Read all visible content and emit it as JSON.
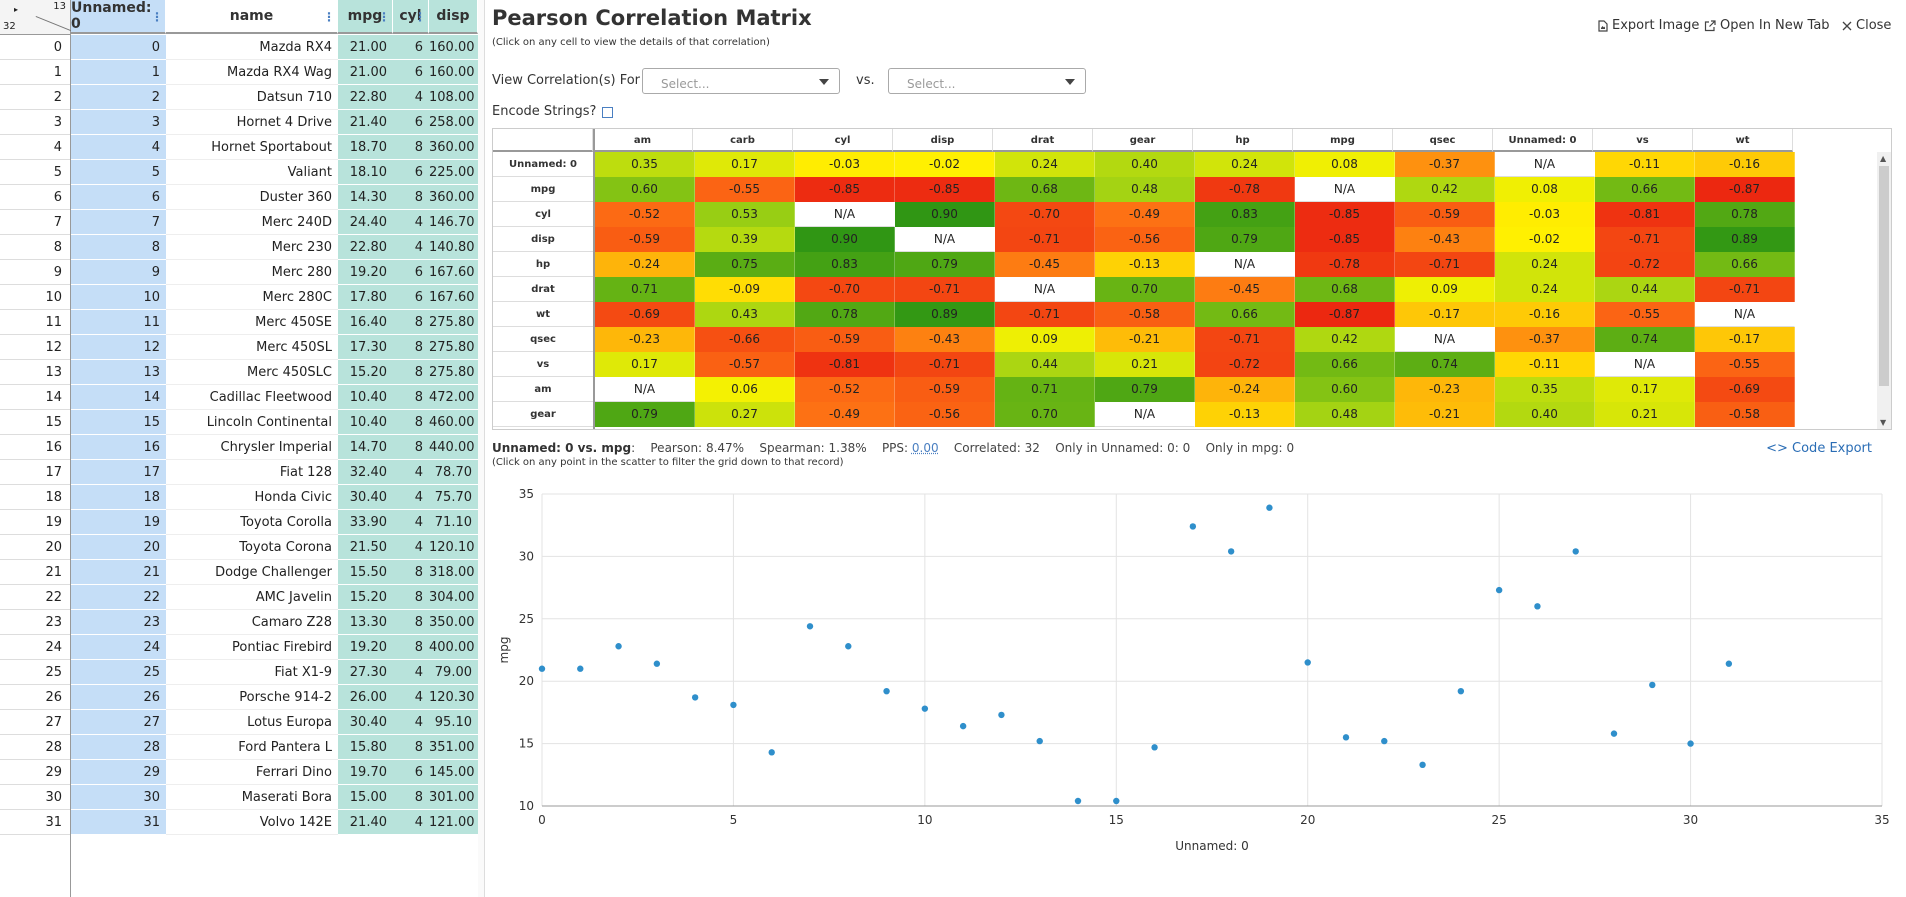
{
  "grid": {
    "corner": {
      "cols": "13",
      "rows": "32",
      "arrow": "▸"
    },
    "columns": [
      {
        "label": "Unnamed: 0"
      },
      {
        "label": "name"
      },
      {
        "label": "mpg"
      },
      {
        "label": "cyl"
      },
      {
        "label": "disp"
      }
    ],
    "rows": [
      [
        "0",
        "0",
        "Mazda RX4",
        "21.00",
        "6",
        "160.00"
      ],
      [
        "1",
        "1",
        "Mazda RX4 Wag",
        "21.00",
        "6",
        "160.00"
      ],
      [
        "2",
        "2",
        "Datsun 710",
        "22.80",
        "4",
        "108.00"
      ],
      [
        "3",
        "3",
        "Hornet 4 Drive",
        "21.40",
        "6",
        "258.00"
      ],
      [
        "4",
        "4",
        "Hornet Sportabout",
        "18.70",
        "8",
        "360.00"
      ],
      [
        "5",
        "5",
        "Valiant",
        "18.10",
        "6",
        "225.00"
      ],
      [
        "6",
        "6",
        "Duster 360",
        "14.30",
        "8",
        "360.00"
      ],
      [
        "7",
        "7",
        "Merc 240D",
        "24.40",
        "4",
        "146.70"
      ],
      [
        "8",
        "8",
        "Merc 230",
        "22.80",
        "4",
        "140.80"
      ],
      [
        "9",
        "9",
        "Merc 280",
        "19.20",
        "6",
        "167.60"
      ],
      [
        "10",
        "10",
        "Merc 280C",
        "17.80",
        "6",
        "167.60"
      ],
      [
        "11",
        "11",
        "Merc 450SE",
        "16.40",
        "8",
        "275.80"
      ],
      [
        "12",
        "12",
        "Merc 450SL",
        "17.30",
        "8",
        "275.80"
      ],
      [
        "13",
        "13",
        "Merc 450SLC",
        "15.20",
        "8",
        "275.80"
      ],
      [
        "14",
        "14",
        "Cadillac Fleetwood",
        "10.40",
        "8",
        "472.00"
      ],
      [
        "15",
        "15",
        "Lincoln Continental",
        "10.40",
        "8",
        "460.00"
      ],
      [
        "16",
        "16",
        "Chrysler Imperial",
        "14.70",
        "8",
        "440.00"
      ],
      [
        "17",
        "17",
        "Fiat 128",
        "32.40",
        "4",
        "78.70"
      ],
      [
        "18",
        "18",
        "Honda Civic",
        "30.40",
        "4",
        "75.70"
      ],
      [
        "19",
        "19",
        "Toyota Corolla",
        "33.90",
        "4",
        "71.10"
      ],
      [
        "20",
        "20",
        "Toyota Corona",
        "21.50",
        "4",
        "120.10"
      ],
      [
        "21",
        "21",
        "Dodge Challenger",
        "15.50",
        "8",
        "318.00"
      ],
      [
        "22",
        "22",
        "AMC Javelin",
        "15.20",
        "8",
        "304.00"
      ],
      [
        "23",
        "23",
        "Camaro Z28",
        "13.30",
        "8",
        "350.00"
      ],
      [
        "24",
        "24",
        "Pontiac Firebird",
        "19.20",
        "8",
        "400.00"
      ],
      [
        "25",
        "25",
        "Fiat X1-9",
        "27.30",
        "4",
        "79.00"
      ],
      [
        "26",
        "26",
        "Porsche 914-2",
        "26.00",
        "4",
        "120.30"
      ],
      [
        "27",
        "27",
        "Lotus Europa",
        "30.40",
        "4",
        "95.10"
      ],
      [
        "28",
        "28",
        "Ford Pantera L",
        "15.80",
        "8",
        "351.00"
      ],
      [
        "29",
        "29",
        "Ferrari Dino",
        "19.70",
        "6",
        "145.00"
      ],
      [
        "30",
        "30",
        "Maserati Bora",
        "15.00",
        "8",
        "301.00"
      ],
      [
        "31",
        "31",
        "Volvo 142E",
        "21.40",
        "4",
        "121.00"
      ]
    ]
  },
  "panel": {
    "title": "Pearson Correlation Matrix",
    "subtitle": "(Click on any cell to view the details of that correlation)",
    "export_image": "Export Image",
    "open_new_tab": "Open In New Tab",
    "close": "Close",
    "view_for_label": "View Correlation(s) For",
    "select1_placeholder": "Select...",
    "vs_label": "vs.",
    "select2_placeholder": "Select...",
    "encode_label": "Encode Strings?"
  },
  "matrix": {
    "columns": [
      "am",
      "carb",
      "cyl",
      "disp",
      "drat",
      "gear",
      "hp",
      "mpg",
      "qsec",
      "Unnamed: 0",
      "vs",
      "wt"
    ],
    "rows": [
      {
        "label": "Unnamed: 0",
        "values": [
          "0.35",
          "0.17",
          "-0.03",
          "-0.02",
          "0.24",
          "0.40",
          "0.24",
          "0.08",
          "-0.37",
          "N/A",
          "-0.11",
          "-0.16"
        ]
      },
      {
        "label": "mpg",
        "values": [
          "0.60",
          "-0.55",
          "-0.85",
          "-0.85",
          "0.68",
          "0.48",
          "-0.78",
          "N/A",
          "0.42",
          "0.08",
          "0.66",
          "-0.87"
        ]
      },
      {
        "label": "cyl",
        "values": [
          "-0.52",
          "0.53",
          "N/A",
          "0.90",
          "-0.70",
          "-0.49",
          "0.83",
          "-0.85",
          "-0.59",
          "-0.03",
          "-0.81",
          "0.78"
        ]
      },
      {
        "label": "disp",
        "values": [
          "-0.59",
          "0.39",
          "0.90",
          "N/A",
          "-0.71",
          "-0.56",
          "0.79",
          "-0.85",
          "-0.43",
          "-0.02",
          "-0.71",
          "0.89"
        ]
      },
      {
        "label": "hp",
        "values": [
          "-0.24",
          "0.75",
          "0.83",
          "0.79",
          "-0.45",
          "-0.13",
          "N/A",
          "-0.78",
          "-0.71",
          "0.24",
          "-0.72",
          "0.66"
        ]
      },
      {
        "label": "drat",
        "values": [
          "0.71",
          "-0.09",
          "-0.70",
          "-0.71",
          "N/A",
          "0.70",
          "-0.45",
          "0.68",
          "0.09",
          "0.24",
          "0.44",
          "-0.71"
        ]
      },
      {
        "label": "wt",
        "values": [
          "-0.69",
          "0.43",
          "0.78",
          "0.89",
          "-0.71",
          "-0.58",
          "0.66",
          "-0.87",
          "-0.17",
          "-0.16",
          "-0.55",
          "N/A"
        ]
      },
      {
        "label": "qsec",
        "values": [
          "-0.23",
          "-0.66",
          "-0.59",
          "-0.43",
          "0.09",
          "-0.21",
          "-0.71",
          "0.42",
          "N/A",
          "-0.37",
          "0.74",
          "-0.17"
        ]
      },
      {
        "label": "vs",
        "values": [
          "0.17",
          "-0.57",
          "-0.81",
          "-0.71",
          "0.44",
          "0.21",
          "-0.72",
          "0.66",
          "0.74",
          "-0.11",
          "N/A",
          "-0.55"
        ]
      },
      {
        "label": "am",
        "values": [
          "N/A",
          "0.06",
          "-0.52",
          "-0.59",
          "0.71",
          "0.79",
          "-0.24",
          "0.60",
          "-0.23",
          "0.35",
          "0.17",
          "-0.69"
        ]
      },
      {
        "label": "gear",
        "values": [
          "0.79",
          "0.27",
          "-0.49",
          "-0.56",
          "0.70",
          "N/A",
          "-0.13",
          "0.48",
          "-0.21",
          "0.40",
          "0.21",
          "-0.58"
        ]
      }
    ]
  },
  "stats": {
    "pair": "Unnamed: 0 vs. mpg",
    "pearson_label": "Pearson:",
    "pearson": "8.47%",
    "spearman_label": "Spearman:",
    "spearman": "1.38%",
    "pps_label": "PPS:",
    "pps": "0.00",
    "correlated_label": "Correlated:",
    "correlated": "32",
    "only_a_label": "Only in Unnamed: 0:",
    "only_a": "0",
    "only_b_label": "Only in mpg:",
    "only_b": "0",
    "hint": "(Click on any point in the scatter to filter the grid down to that record)",
    "code_export": "Code Export"
  },
  "chart_data": {
    "type": "scatter",
    "xlabel": "Unnamed: 0",
    "ylabel": "mpg",
    "xlim": [
      0,
      35
    ],
    "ylim": [
      10,
      35
    ],
    "xticks": [
      0,
      5,
      10,
      15,
      20,
      25,
      30,
      35
    ],
    "yticks": [
      10,
      15,
      20,
      25,
      30,
      35
    ],
    "color": "#2f8fcb",
    "x": [
      0,
      1,
      2,
      3,
      4,
      5,
      6,
      7,
      8,
      9,
      10,
      11,
      12,
      13,
      14,
      15,
      16,
      17,
      18,
      19,
      20,
      21,
      22,
      23,
      24,
      25,
      26,
      27,
      28,
      29,
      30,
      31
    ],
    "y": [
      21.0,
      21.0,
      22.8,
      21.4,
      18.7,
      18.1,
      14.3,
      24.4,
      22.8,
      19.2,
      17.8,
      16.4,
      17.3,
      15.2,
      10.4,
      10.4,
      14.7,
      32.4,
      30.4,
      33.9,
      21.5,
      15.5,
      15.2,
      13.3,
      19.2,
      27.3,
      26.0,
      30.4,
      15.8,
      19.7,
      15.0,
      21.4
    ]
  }
}
